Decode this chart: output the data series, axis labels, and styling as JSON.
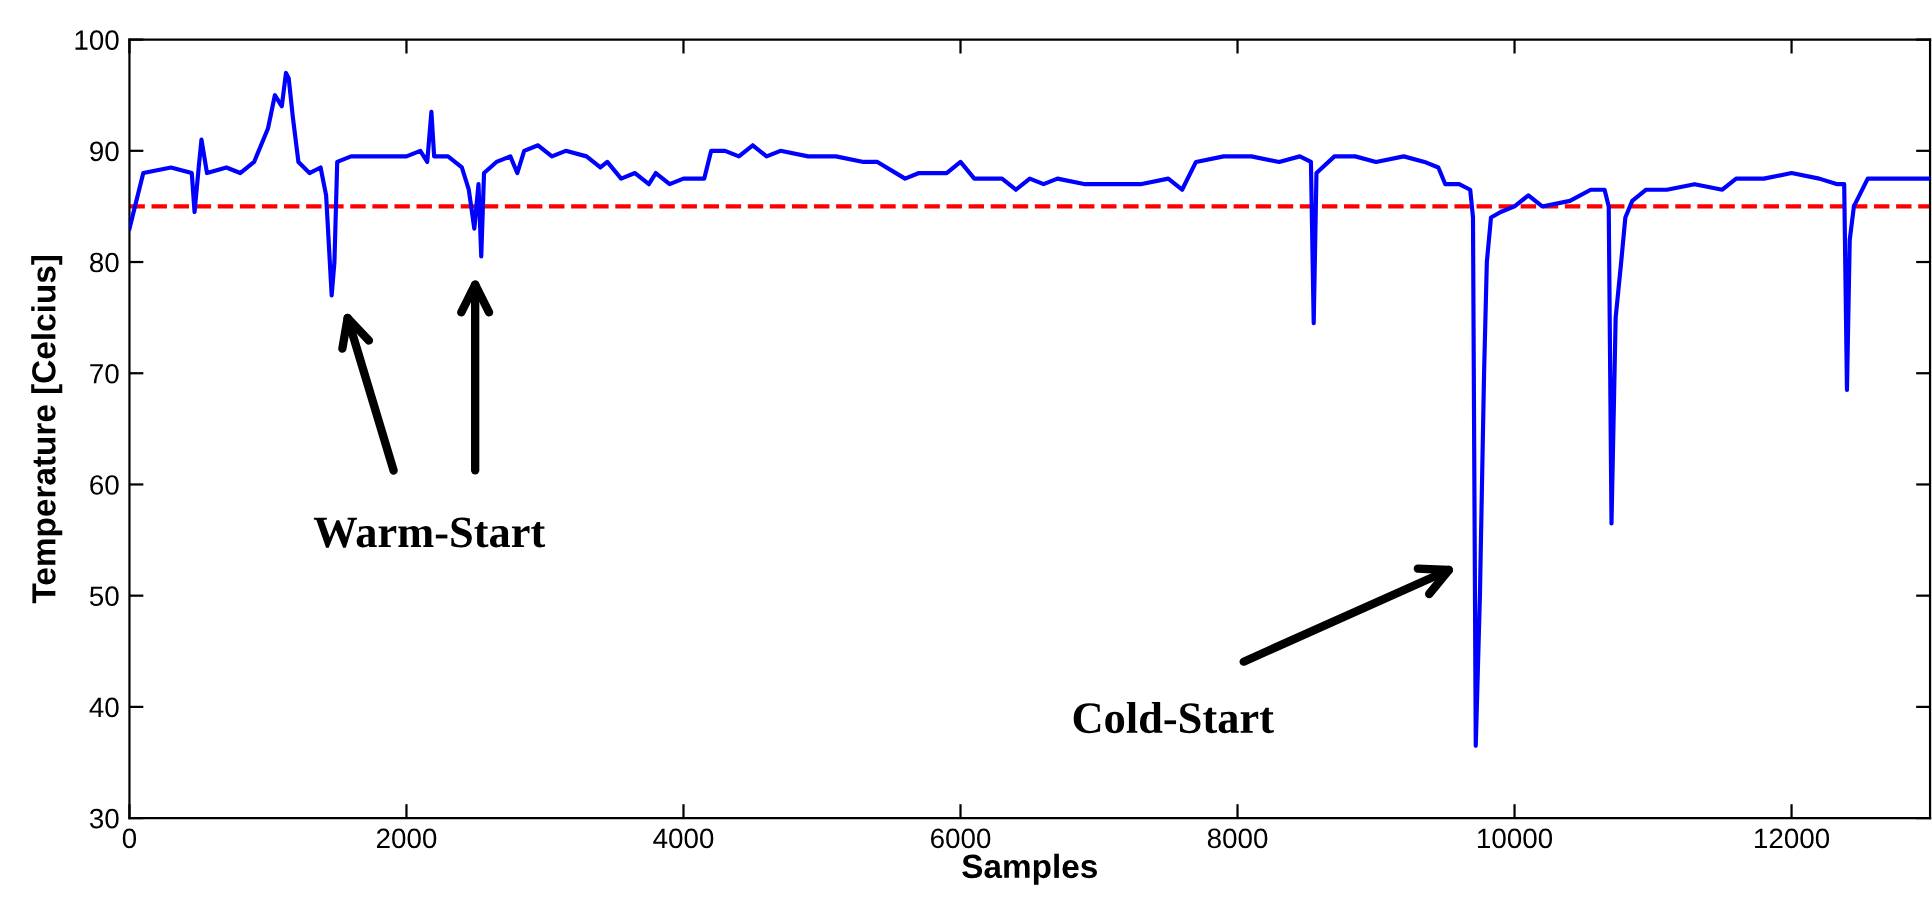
{
  "chart_data": {
    "type": "line",
    "xlabel": "Samples",
    "ylabel": "Temperature [Celcius]",
    "xlim": [
      0,
      13000
    ],
    "xticks": [
      0,
      2000,
      4000,
      6000,
      8000,
      10000,
      12000
    ],
    "ylim": [
      30,
      100
    ],
    "yticks": [
      30,
      40,
      50,
      60,
      70,
      80,
      90,
      100
    ],
    "grid": false,
    "line_style": "solid",
    "series": [
      {
        "color": "#0000ff",
        "x": [
          0,
          100,
          300,
          450,
          470,
          500,
          520,
          560,
          700,
          800,
          900,
          1000,
          1050,
          1100,
          1130,
          1150,
          1180,
          1220,
          1300,
          1380,
          1420,
          1460,
          1480,
          1500,
          1600,
          1800,
          2000,
          2100,
          2150,
          2180,
          2200,
          2300,
          2400,
          2450,
          2490,
          2520,
          2540,
          2560,
          2650,
          2750,
          2800,
          2850,
          2950,
          3050,
          3150,
          3300,
          3400,
          3450,
          3550,
          3650,
          3750,
          3800,
          3900,
          4000,
          4150,
          4200,
          4300,
          4400,
          4500,
          4600,
          4700,
          4900,
          5100,
          5300,
          5400,
          5600,
          5700,
          5900,
          6000,
          6100,
          6300,
          6400,
          6500,
          6600,
          6700,
          6900,
          7100,
          7300,
          7500,
          7600,
          7700,
          7900,
          8100,
          8300,
          8450,
          8530,
          8550,
          8570,
          8700,
          8850,
          9000,
          9200,
          9350,
          9450,
          9500,
          9600,
          9680,
          9700,
          9720,
          9750,
          9780,
          9800,
          9830,
          9900,
          10000,
          10100,
          10200,
          10400,
          10550,
          10650,
          10680,
          10700,
          10730,
          10770,
          10800,
          10850,
          10950,
          11100,
          11300,
          11500,
          11600,
          11800,
          12000,
          12200,
          12330,
          12380,
          12400,
          12420,
          12450,
          12550,
          12700,
          12850,
          13000
        ],
        "values": [
          83,
          88,
          88.5,
          88,
          84.5,
          88.5,
          91,
          88,
          88.5,
          88,
          89,
          92,
          95,
          94,
          97,
          96.5,
          93,
          89,
          88,
          88.5,
          86,
          77,
          80,
          89,
          89.5,
          89.5,
          89.5,
          90,
          89,
          93.5,
          89.5,
          89.5,
          88.5,
          86.5,
          83,
          87,
          80.5,
          88,
          89,
          89.5,
          88,
          90,
          90.5,
          89.5,
          90,
          89.5,
          88.5,
          89,
          87.5,
          88,
          87,
          88,
          87,
          87.5,
          87.5,
          90,
          90,
          89.5,
          90.5,
          89.5,
          90,
          89.5,
          89.5,
          89,
          89,
          87.5,
          88,
          88,
          89,
          87.5,
          87.5,
          86.5,
          87.5,
          87,
          87.5,
          87,
          87,
          87,
          87.5,
          86.5,
          89,
          89.5,
          89.5,
          89,
          89.5,
          89,
          74.5,
          88,
          89.5,
          89.5,
          89,
          89.5,
          89,
          88.5,
          87,
          87,
          86.5,
          84,
          36.5,
          50,
          70,
          80,
          84,
          84.5,
          85,
          86,
          85,
          85.5,
          86.5,
          86.5,
          85,
          56.5,
          75,
          80,
          84,
          85.5,
          86.5,
          86.5,
          87,
          86.5,
          87.5,
          87.5,
          88,
          87.5,
          87,
          87,
          68.5,
          82,
          85,
          87.5,
          87.5,
          87.5,
          87.5
        ]
      }
    ],
    "ref_lines": [
      {
        "axis": "y",
        "value": 85,
        "color": "#ff0000",
        "line_style": "dashed"
      }
    ],
    "annotations": [
      "Warm-Start",
      "Cold-Start"
    ]
  }
}
